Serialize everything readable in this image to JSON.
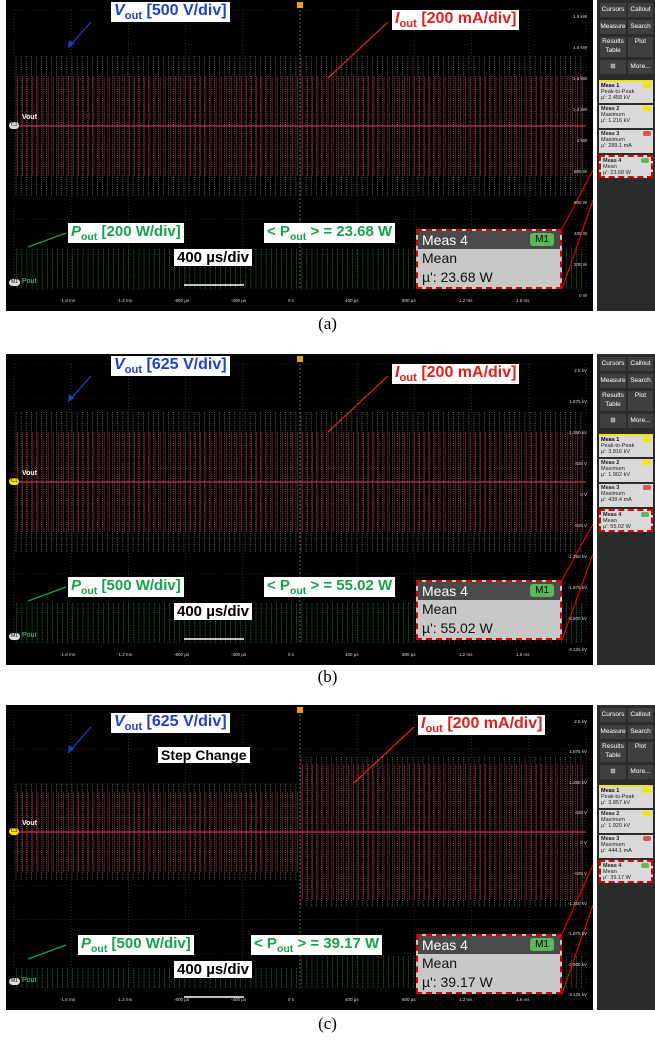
{
  "sidebar": {
    "cursors": "Cursors",
    "callout": "Callout",
    "measure": "Measure",
    "search": "Search",
    "results_table": "Results Table",
    "plot": "Plot",
    "more": "More..."
  },
  "x_ticks": [
    "-1.6 ms",
    "-1.2 ms",
    "-800 µs",
    "-400 µs",
    "0 s",
    "400 µs",
    "800 µs",
    "1.2 ms",
    "1.6 ms"
  ],
  "timebase": "400 µs/div",
  "zoom": {
    "title": "Meas 4",
    "badge": "M1",
    "stat": "Mean"
  },
  "colors": {
    "vout": "#1f3fc9",
    "iout": "#e01f1f",
    "pout": "#17a24a"
  },
  "panels": [
    {
      "caption": "(a)",
      "vout_label": "V",
      "vout_sub": "out",
      "vout_scale": "[500 V/div]",
      "iout_label": "I",
      "iout_sub": "out",
      "iout_scale": "[200 mA/div]",
      "pout_label": "P",
      "pout_sub": "out",
      "pout_scale": "[200 W/div]",
      "avg_prefix": "< P",
      "avg_sub": "out",
      "avg_value": "> = 23.68 W",
      "zoom_value": "µ': 23.68 W",
      "right_ticks": [
        "1.8 kW",
        "1.6 kW",
        "1.4 kW",
        "1.2 kW",
        "1 kW",
        "800 W",
        "600 W",
        "400 W",
        "200 W",
        "0 W"
      ],
      "ch1": "Vout",
      "m1": "Pout",
      "meas": [
        {
          "title": "Meas 1",
          "type": "Peak-to-Peak",
          "value": "µ': 2.458 kV"
        },
        {
          "title": "Meas 2",
          "type": "Maximum",
          "value": "µ': 1.216 kV"
        },
        {
          "title": "Meas 3",
          "type": "Maximum",
          "value": "µ': 289.1 mA"
        },
        {
          "title": "Meas 4",
          "type": "Mean",
          "value": "µ': 23.68 W"
        }
      ]
    },
    {
      "caption": "(b)",
      "vout_label": "V",
      "vout_sub": "out",
      "vout_scale": "[625 V/div]",
      "iout_label": "I",
      "iout_sub": "out",
      "iout_scale": "[200 mA/div]",
      "pout_label": "P",
      "pout_sub": "out",
      "pout_scale": "[500 W/div]",
      "avg_prefix": "< P",
      "avg_sub": "out",
      "avg_value": "> = 55.02 W",
      "zoom_value": "µ': 55.02 W",
      "right_ticks": [
        "2.5 kV",
        "1.875 kV",
        "1.250 kV",
        "625 V",
        "0 V",
        "-625 V",
        "-1.250 kV",
        "-1.875 kV",
        "-2.500 kV",
        "-3.125 kV"
      ],
      "ch1": "Vout",
      "m1": "Pout",
      "meas": [
        {
          "title": "Meas 1",
          "type": "Peak-to-Peak",
          "value": "µ': 3.816 kV"
        },
        {
          "title": "Meas 2",
          "type": "Maximum",
          "value": "µ': 1.902 kV"
        },
        {
          "title": "Meas 3",
          "type": "Maximum",
          "value": "µ': 439.4 mA"
        },
        {
          "title": "Meas 4",
          "type": "Mean",
          "value": "µ': 55.02 W"
        }
      ]
    },
    {
      "caption": "(c)",
      "vout_label": "V",
      "vout_sub": "out",
      "vout_scale": "[625 V/div]",
      "iout_label": "I",
      "iout_sub": "out",
      "iout_scale": "[200 mA/div]",
      "pout_label": "P",
      "pout_sub": "out",
      "pout_scale": "[500 W/div]",
      "avg_prefix": "< P",
      "avg_sub": "out",
      "avg_value": "> = 39.17 W",
      "zoom_value": "µ': 39.17 W",
      "step_label": "Step Change",
      "right_ticks": [
        "2.5 kV",
        "1.875 kV",
        "1.250 kV",
        "625 V",
        "0 V",
        "-625 V",
        "-1.250 kV",
        "-1.875 kV",
        "-2.500 kV",
        "-3.125 kV"
      ],
      "ch1": "Vout",
      "m1": "Pout",
      "meas": [
        {
          "title": "Meas 1",
          "type": "Peak-to-Peak",
          "value": "µ': 3.857 kV"
        },
        {
          "title": "Meas 2",
          "type": "Maximum",
          "value": "µ': 1.920 kV"
        },
        {
          "title": "Meas 3",
          "type": "Maximum",
          "value": "µ': 444.1 mA"
        },
        {
          "title": "Meas 4",
          "type": "Mean",
          "value": "µ': 39.17 W"
        }
      ]
    }
  ]
}
